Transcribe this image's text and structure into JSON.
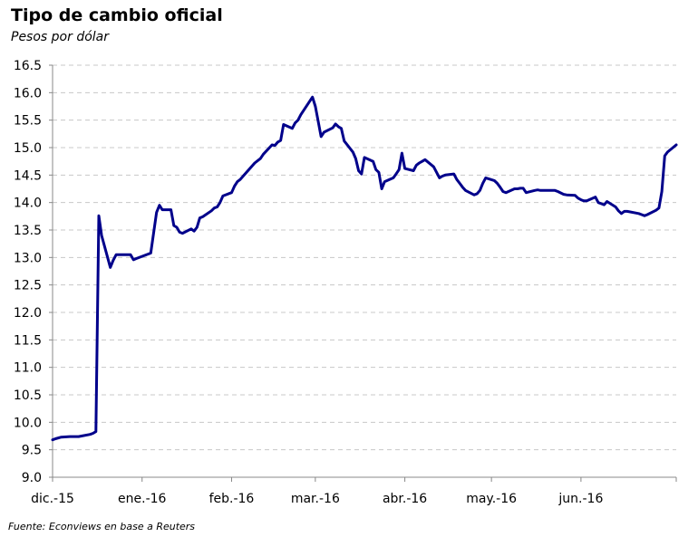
{
  "header": {
    "title": "Tipo de cambio oficial",
    "subtitle": "Pesos por dólar"
  },
  "footer": {
    "source": "Fuente: Econviews en base a Reuters"
  },
  "colors": {
    "line": "#00008B",
    "grid": "#c8c8c8",
    "axis": "#888888"
  },
  "chart_data": {
    "type": "line",
    "title": "Tipo de cambio oficial",
    "subtitle": "Pesos por dólar",
    "xlabel": "",
    "ylabel": "",
    "ylim": [
      9.0,
      16.5
    ],
    "yticks": [
      "9.0",
      "9.5",
      "10.0",
      "10.5",
      "11.0",
      "11.5",
      "12.0",
      "12.5",
      "13.0",
      "13.5",
      "14.0",
      "14.5",
      "15.0",
      "15.5",
      "16.0",
      "16.5"
    ],
    "xlim": [
      "2015-12-01",
      "2016-06-30"
    ],
    "xticks": [
      {
        "date": "2015-12-01",
        "label": "dic.-15"
      },
      {
        "date": "2016-01-01",
        "label": "ene.-16"
      },
      {
        "date": "2016-02-01",
        "label": "feb.-16"
      },
      {
        "date": "2016-03-01",
        "label": "mar.-16"
      },
      {
        "date": "2016-04-01",
        "label": "abr.-16"
      },
      {
        "date": "2016-05-01",
        "label": "may.-16"
      },
      {
        "date": "2016-06-01",
        "label": "jun.-16"
      }
    ],
    "grid": "horizontal dashed",
    "series": [
      {
        "points": [
          [
            "2015-12-01",
            9.68
          ],
          [
            "2015-12-02",
            9.7
          ],
          [
            "2015-12-04",
            9.73
          ],
          [
            "2015-12-07",
            9.74
          ],
          [
            "2015-12-10",
            9.74
          ],
          [
            "2015-12-11",
            9.75
          ],
          [
            "2015-12-14",
            9.78
          ],
          [
            "2015-12-15",
            9.8
          ],
          [
            "2015-12-16",
            9.83
          ],
          [
            "2015-12-17",
            13.76
          ],
          [
            "2015-12-18",
            13.4
          ],
          [
            "2015-12-21",
            12.82
          ],
          [
            "2015-12-22",
            12.95
          ],
          [
            "2015-12-23",
            13.05
          ],
          [
            "2015-12-28",
            13.05
          ],
          [
            "2015-12-29",
            12.96
          ],
          [
            "2015-12-30",
            12.98
          ],
          [
            "2016-01-04",
            13.08
          ],
          [
            "2016-01-05",
            13.45
          ],
          [
            "2016-01-06",
            13.82
          ],
          [
            "2016-01-07",
            13.95
          ],
          [
            "2016-01-08",
            13.87
          ],
          [
            "2016-01-11",
            13.87
          ],
          [
            "2016-01-12",
            13.58
          ],
          [
            "2016-01-13",
            13.55
          ],
          [
            "2016-01-14",
            13.46
          ],
          [
            "2016-01-15",
            13.44
          ],
          [
            "2016-01-18",
            13.52
          ],
          [
            "2016-01-19",
            13.48
          ],
          [
            "2016-01-20",
            13.55
          ],
          [
            "2016-01-21",
            13.72
          ],
          [
            "2016-01-22",
            13.74
          ],
          [
            "2016-01-25",
            13.85
          ],
          [
            "2016-01-26",
            13.9
          ],
          [
            "2016-01-27",
            13.92
          ],
          [
            "2016-01-28",
            14.0
          ],
          [
            "2016-01-29",
            14.12
          ],
          [
            "2016-02-01",
            14.18
          ],
          [
            "2016-02-02",
            14.3
          ],
          [
            "2016-02-03",
            14.38
          ],
          [
            "2016-02-04",
            14.42
          ],
          [
            "2016-02-05",
            14.48
          ],
          [
            "2016-02-09",
            14.72
          ],
          [
            "2016-02-10",
            14.76
          ],
          [
            "2016-02-11",
            14.8
          ],
          [
            "2016-02-12",
            14.88
          ],
          [
            "2016-02-15",
            15.05
          ],
          [
            "2016-02-16",
            15.04
          ],
          [
            "2016-02-17",
            15.1
          ],
          [
            "2016-02-18",
            15.13
          ],
          [
            "2016-02-19",
            15.42
          ],
          [
            "2016-02-22",
            15.35
          ],
          [
            "2016-02-23",
            15.45
          ],
          [
            "2016-02-24",
            15.5
          ],
          [
            "2016-02-25",
            15.6
          ],
          [
            "2016-02-29",
            15.92
          ],
          [
            "2016-03-01",
            15.75
          ],
          [
            "2016-03-02",
            15.48
          ],
          [
            "2016-03-03",
            15.2
          ],
          [
            "2016-03-04",
            15.28
          ],
          [
            "2016-03-07",
            15.36
          ],
          [
            "2016-03-08",
            15.43
          ],
          [
            "2016-03-09",
            15.38
          ],
          [
            "2016-03-10",
            15.35
          ],
          [
            "2016-03-11",
            15.12
          ],
          [
            "2016-03-14",
            14.92
          ],
          [
            "2016-03-15",
            14.8
          ],
          [
            "2016-03-16",
            14.58
          ],
          [
            "2016-03-17",
            14.52
          ],
          [
            "2016-03-18",
            14.82
          ],
          [
            "2016-03-21",
            14.75
          ],
          [
            "2016-03-22",
            14.6
          ],
          [
            "2016-03-23",
            14.55
          ],
          [
            "2016-03-24",
            14.25
          ],
          [
            "2016-03-25",
            14.38
          ],
          [
            "2016-03-28",
            14.45
          ],
          [
            "2016-03-29",
            14.52
          ],
          [
            "2016-03-30",
            14.6
          ],
          [
            "2016-03-31",
            14.9
          ],
          [
            "2016-04-01",
            14.62
          ],
          [
            "2016-04-04",
            14.58
          ],
          [
            "2016-04-05",
            14.68
          ],
          [
            "2016-04-06",
            14.72
          ],
          [
            "2016-04-07",
            14.75
          ],
          [
            "2016-04-08",
            14.78
          ],
          [
            "2016-04-11",
            14.65
          ],
          [
            "2016-04-12",
            14.55
          ],
          [
            "2016-04-13",
            14.45
          ],
          [
            "2016-04-14",
            14.48
          ],
          [
            "2016-04-15",
            14.5
          ],
          [
            "2016-04-18",
            14.52
          ],
          [
            "2016-04-19",
            14.42
          ],
          [
            "2016-04-20",
            14.35
          ],
          [
            "2016-04-21",
            14.28
          ],
          [
            "2016-04-22",
            14.22
          ],
          [
            "2016-04-25",
            14.14
          ],
          [
            "2016-04-26",
            14.16
          ],
          [
            "2016-04-27",
            14.22
          ],
          [
            "2016-04-28",
            14.35
          ],
          [
            "2016-04-29",
            14.45
          ],
          [
            "2016-05-02",
            14.4
          ],
          [
            "2016-05-03",
            14.35
          ],
          [
            "2016-05-04",
            14.28
          ],
          [
            "2016-05-05",
            14.2
          ],
          [
            "2016-05-06",
            14.18
          ],
          [
            "2016-05-09",
            14.25
          ],
          [
            "2016-05-10",
            14.25
          ],
          [
            "2016-05-11",
            14.26
          ],
          [
            "2016-05-12",
            14.26
          ],
          [
            "2016-05-13",
            14.18
          ],
          [
            "2016-05-16",
            14.22
          ],
          [
            "2016-05-17",
            14.23
          ],
          [
            "2016-05-18",
            14.22
          ],
          [
            "2016-05-19",
            14.22
          ],
          [
            "2016-05-20",
            14.22
          ],
          [
            "2016-05-23",
            14.22
          ],
          [
            "2016-05-24",
            14.2
          ],
          [
            "2016-05-26",
            14.15
          ],
          [
            "2016-05-27",
            14.14
          ],
          [
            "2016-05-30",
            14.13
          ],
          [
            "2016-05-31",
            14.08
          ],
          [
            "2016-06-01",
            14.05
          ],
          [
            "2016-06-02",
            14.03
          ],
          [
            "2016-06-03",
            14.03
          ],
          [
            "2016-06-06",
            14.1
          ],
          [
            "2016-06-07",
            14.0
          ],
          [
            "2016-06-08",
            13.98
          ],
          [
            "2016-06-09",
            13.96
          ],
          [
            "2016-06-10",
            14.02
          ],
          [
            "2016-06-13",
            13.92
          ],
          [
            "2016-06-14",
            13.85
          ],
          [
            "2016-06-15",
            13.8
          ],
          [
            "2016-06-16",
            13.84
          ],
          [
            "2016-06-17",
            13.84
          ],
          [
            "2016-06-21",
            13.8
          ],
          [
            "2016-06-22",
            13.78
          ],
          [
            "2016-06-23",
            13.76
          ],
          [
            "2016-06-24",
            13.78
          ],
          [
            "2016-06-27",
            13.86
          ],
          [
            "2016-06-28",
            13.9
          ],
          [
            "2016-06-29",
            14.2
          ],
          [
            "2016-06-30",
            14.85
          ],
          [
            "2016-07-01",
            14.92
          ],
          [
            "2016-07-04",
            15.05
          ]
        ]
      }
    ]
  }
}
